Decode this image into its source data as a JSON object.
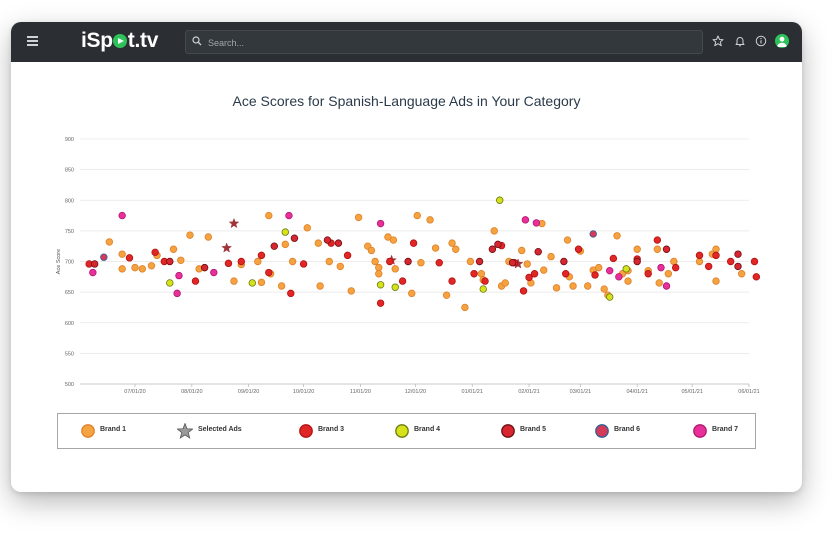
{
  "app": {
    "logo": "iSpot.tv",
    "search": {
      "placeholder": "Search..."
    },
    "icons": [
      "hamburger-icon",
      "search-icon",
      "star-icon",
      "bell-icon",
      "info-icon",
      "user-avatar-icon"
    ]
  },
  "chart_data": {
    "type": "scatter",
    "title": "Ace Scores for Spanish-Language Ads in Your Category",
    "xlabel": "",
    "ylabel": "Ace Score",
    "ylim": [
      500,
      900
    ],
    "yticks": [
      500,
      550,
      600,
      650,
      700,
      750,
      800,
      850,
      900
    ],
    "xlim": [
      "2020-06-01",
      "2021-06-01"
    ],
    "xticks": [
      "07/01/20",
      "08/01/20",
      "09/01/20",
      "10/01/20",
      "11/01/20",
      "12/01/20",
      "01/01/21",
      "02/01/21",
      "03/01/21",
      "04/01/21",
      "05/01/21",
      "06/01/21"
    ],
    "grid": true,
    "legend_position": "bottom",
    "series": [
      {
        "name": "Brand 1",
        "marker": "circle",
        "color": "#f4a340",
        "stroke": "#e0802a",
        "points": [
          [
            "2020-06-17",
            732
          ],
          [
            "2020-06-24",
            712
          ],
          [
            "2020-06-24",
            688
          ],
          [
            "2020-07-01",
            690
          ],
          [
            "2020-07-05",
            688
          ],
          [
            "2020-07-10",
            693
          ],
          [
            "2020-07-13",
            710
          ],
          [
            "2020-07-22",
            720
          ],
          [
            "2020-07-26",
            702
          ],
          [
            "2020-07-31",
            743
          ],
          [
            "2020-08-05",
            688
          ],
          [
            "2020-08-10",
            740
          ],
          [
            "2020-08-24",
            668
          ],
          [
            "2020-08-28",
            695
          ],
          [
            "2020-09-06",
            700
          ],
          [
            "2020-09-08",
            666
          ],
          [
            "2020-09-12",
            775
          ],
          [
            "2020-09-13",
            680
          ],
          [
            "2020-09-19",
            660
          ],
          [
            "2020-09-21",
            728
          ],
          [
            "2020-09-25",
            700
          ],
          [
            "2020-10-03",
            755
          ],
          [
            "2020-10-09",
            730
          ],
          [
            "2020-10-10",
            660
          ],
          [
            "2020-10-15",
            700
          ],
          [
            "2020-10-21",
            692
          ],
          [
            "2020-10-27",
            652
          ],
          [
            "2020-10-31",
            772
          ],
          [
            "2020-11-05",
            725
          ],
          [
            "2020-11-07",
            718
          ],
          [
            "2020-11-09",
            700
          ],
          [
            "2020-11-11",
            690
          ],
          [
            "2020-11-11",
            680
          ],
          [
            "2020-11-16",
            740
          ],
          [
            "2020-11-19",
            735
          ],
          [
            "2020-11-20",
            688
          ],
          [
            "2020-11-29",
            648
          ],
          [
            "2020-12-02",
            775
          ],
          [
            "2020-12-04",
            698
          ],
          [
            "2020-12-09",
            768
          ],
          [
            "2020-12-12",
            722
          ],
          [
            "2020-12-18",
            645
          ],
          [
            "2020-12-21",
            730
          ],
          [
            "2020-12-23",
            720
          ],
          [
            "2020-12-28",
            625
          ],
          [
            "2020-12-31",
            700
          ],
          [
            "2021-01-06",
            680
          ],
          [
            "2021-01-07",
            670
          ],
          [
            "2021-01-13",
            750
          ],
          [
            "2021-01-17",
            660
          ],
          [
            "2021-01-19",
            665
          ],
          [
            "2021-01-21",
            700
          ],
          [
            "2021-01-28",
            718
          ],
          [
            "2021-01-31",
            696
          ],
          [
            "2021-02-02",
            665
          ],
          [
            "2021-02-08",
            762
          ],
          [
            "2021-02-09",
            686
          ],
          [
            "2021-02-13",
            708
          ],
          [
            "2021-02-16",
            657
          ],
          [
            "2021-02-22",
            735
          ],
          [
            "2021-02-23",
            675
          ],
          [
            "2021-02-25",
            660
          ],
          [
            "2021-03-01",
            717
          ],
          [
            "2021-03-05",
            660
          ],
          [
            "2021-03-08",
            686
          ],
          [
            "2021-03-11",
            690
          ],
          [
            "2021-03-14",
            655
          ],
          [
            "2021-03-16",
            645
          ],
          [
            "2021-03-21",
            742
          ],
          [
            "2021-03-24",
            680
          ],
          [
            "2021-03-27",
            668
          ],
          [
            "2021-03-27",
            685
          ],
          [
            "2021-04-01",
            720
          ],
          [
            "2021-04-07",
            685
          ],
          [
            "2021-04-12",
            720
          ],
          [
            "2021-04-13",
            665
          ],
          [
            "2021-04-18",
            680
          ],
          [
            "2021-04-21",
            700
          ],
          [
            "2021-05-05",
            700
          ],
          [
            "2021-05-12",
            712
          ],
          [
            "2021-05-14",
            720
          ],
          [
            "2021-05-14",
            668
          ],
          [
            "2021-05-28",
            680
          ]
        ]
      },
      {
        "name": "Selected Ads",
        "marker": "star",
        "color": "#a0343a",
        "stroke": "#a0343a",
        "points": [
          [
            "2020-08-24",
            762
          ],
          [
            "2020-08-20",
            722
          ],
          [
            "2020-11-18",
            702
          ],
          [
            "2021-01-26",
            696
          ]
        ]
      },
      {
        "name": "Brand 3",
        "marker": "circle",
        "color": "#e12626",
        "stroke": "#b21212",
        "points": [
          [
            "2020-06-06",
            696
          ],
          [
            "2020-06-28",
            706
          ],
          [
            "2020-07-12",
            715
          ],
          [
            "2020-07-17",
            700
          ],
          [
            "2020-08-03",
            668
          ],
          [
            "2020-08-21",
            697
          ],
          [
            "2020-08-28",
            700
          ],
          [
            "2020-09-08",
            710
          ],
          [
            "2020-09-12",
            682
          ],
          [
            "2020-09-24",
            648
          ],
          [
            "2020-10-01",
            696
          ],
          [
            "2020-10-16",
            730
          ],
          [
            "2020-10-25",
            710
          ],
          [
            "2020-11-12",
            632
          ],
          [
            "2020-11-17",
            700
          ],
          [
            "2020-11-24",
            668
          ],
          [
            "2020-11-30",
            730
          ],
          [
            "2020-12-14",
            698
          ],
          [
            "2020-12-21",
            668
          ],
          [
            "2021-01-02",
            680
          ],
          [
            "2021-01-08",
            668
          ],
          [
            "2021-01-17",
            726
          ],
          [
            "2021-01-24",
            698
          ],
          [
            "2021-01-29",
            652
          ],
          [
            "2021-02-01",
            674
          ],
          [
            "2021-02-04",
            680
          ],
          [
            "2021-02-21",
            680
          ],
          [
            "2021-02-28",
            720
          ],
          [
            "2021-03-09",
            678
          ],
          [
            "2021-03-19",
            705
          ],
          [
            "2021-04-01",
            704
          ],
          [
            "2021-04-07",
            680
          ],
          [
            "2021-04-12",
            735
          ],
          [
            "2021-04-22",
            690
          ],
          [
            "2021-05-05",
            710
          ],
          [
            "2021-05-10",
            692
          ],
          [
            "2021-05-14",
            710
          ],
          [
            "2021-05-22",
            700
          ],
          [
            "2021-06-04",
            700
          ],
          [
            "2021-06-05",
            675
          ]
        ]
      },
      {
        "name": "Brand 4",
        "marker": "circle",
        "color": "#d6e21a",
        "stroke": "#6b7a10",
        "points": [
          [
            "2020-07-20",
            665
          ],
          [
            "2020-09-03",
            665
          ],
          [
            "2020-09-21",
            748
          ],
          [
            "2020-11-12",
            662
          ],
          [
            "2020-11-20",
            658
          ],
          [
            "2021-01-07",
            655
          ],
          [
            "2021-01-16",
            800
          ],
          [
            "2021-03-17",
            642
          ],
          [
            "2021-03-26",
            688
          ]
        ]
      },
      {
        "name": "Brand 5",
        "marker": "circle",
        "color": "#d7262f",
        "stroke": "#6b0f14",
        "points": [
          [
            "2020-06-09",
            696
          ],
          [
            "2020-07-20",
            700
          ],
          [
            "2020-08-08",
            690
          ],
          [
            "2020-09-15",
            725
          ],
          [
            "2020-09-26",
            738
          ],
          [
            "2020-10-14",
            735
          ],
          [
            "2020-10-20",
            730
          ],
          [
            "2020-11-27",
            700
          ],
          [
            "2021-01-05",
            700
          ],
          [
            "2021-01-12",
            720
          ],
          [
            "2021-01-15",
            728
          ],
          [
            "2021-01-23",
            698
          ],
          [
            "2021-02-06",
            716
          ],
          [
            "2021-02-20",
            700
          ],
          [
            "2021-04-01",
            700
          ],
          [
            "2021-04-17",
            720
          ],
          [
            "2021-05-26",
            712
          ],
          [
            "2021-05-26",
            692
          ]
        ]
      },
      {
        "name": "Brand 6",
        "marker": "circle",
        "color": "#d63a5a",
        "stroke": "#2b5f93",
        "points": [
          [
            "2020-06-14",
            707
          ],
          [
            "2021-03-08",
            745
          ]
        ]
      },
      {
        "name": "Brand 7",
        "marker": "circle",
        "color": "#e8309a",
        "stroke": "#b01670",
        "points": [
          [
            "2020-06-08",
            682
          ],
          [
            "2020-06-24",
            775
          ],
          [
            "2020-07-25",
            677
          ],
          [
            "2020-07-24",
            648
          ],
          [
            "2020-08-13",
            682
          ],
          [
            "2020-09-23",
            775
          ],
          [
            "2020-11-12",
            762
          ],
          [
            "2021-01-30",
            768
          ],
          [
            "2021-02-05",
            763
          ],
          [
            "2021-03-17",
            685
          ],
          [
            "2021-03-22",
            675
          ],
          [
            "2021-04-14",
            690
          ],
          [
            "2021-04-17",
            660
          ]
        ]
      }
    ]
  }
}
